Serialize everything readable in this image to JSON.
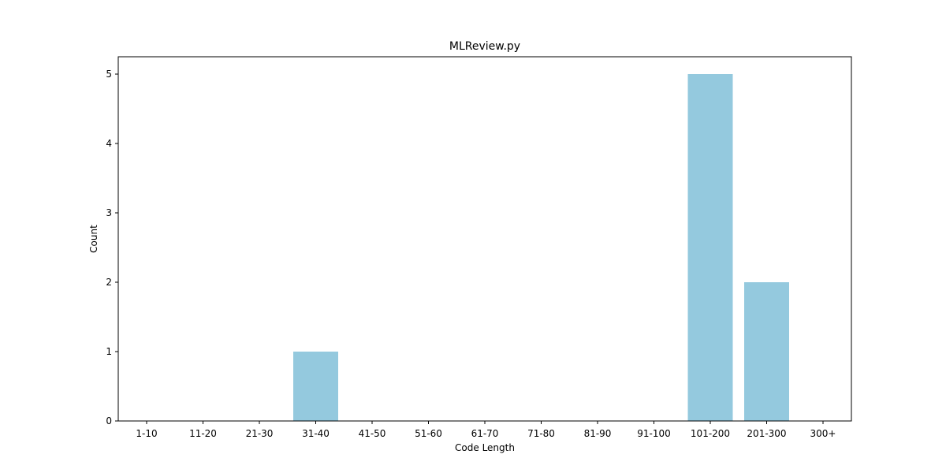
{
  "chart_data": {
    "type": "bar",
    "title": "MLReview.py",
    "xlabel": "Code Length",
    "ylabel": "Count",
    "categories": [
      "1-10",
      "11-20",
      "21-30",
      "31-40",
      "41-50",
      "51-60",
      "61-70",
      "71-80",
      "81-90",
      "91-100",
      "101-200",
      "201-300",
      "300+"
    ],
    "values": [
      0,
      0,
      0,
      1,
      0,
      0,
      0,
      0,
      0,
      0,
      5,
      2,
      0
    ],
    "ylim": [
      0,
      5.25
    ],
    "yticks": [
      0,
      1,
      2,
      3,
      4,
      5
    ],
    "grid": false,
    "legend": "none",
    "bar_color": "#94c9de",
    "axes_color": "#000000"
  }
}
